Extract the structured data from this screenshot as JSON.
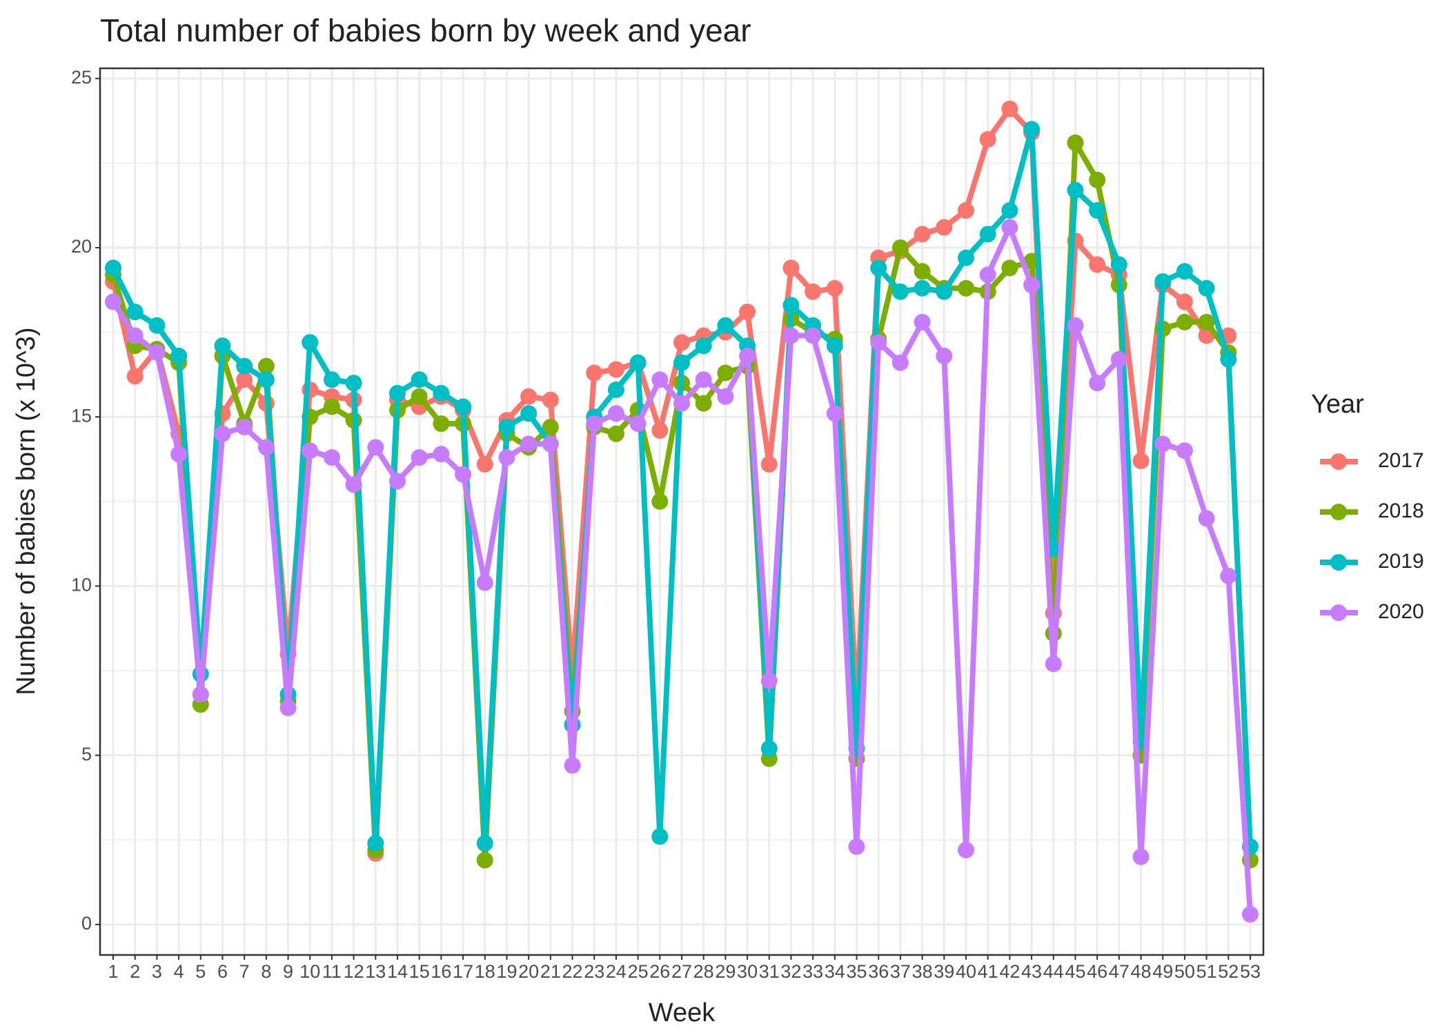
{
  "chart_data": {
    "type": "line",
    "title": "Total number of babies born by week and year",
    "x_label": "Week",
    "y_label": "Number of babies born (x 10^3)",
    "legend_title": "Year",
    "legend_position": "right",
    "grid": true,
    "categories": [
      "1",
      "2",
      "3",
      "4",
      "5",
      "6",
      "7",
      "8",
      "9",
      "10",
      "11",
      "12",
      "13",
      "14",
      "15",
      "16",
      "17",
      "18",
      "19",
      "20",
      "21",
      "22",
      "23",
      "24",
      "25",
      "26",
      "27",
      "28",
      "29",
      "30",
      "31",
      "32",
      "33",
      "34",
      "35",
      "36",
      "37",
      "38",
      "39",
      "40",
      "41",
      "42",
      "43",
      "44",
      "45",
      "46",
      "47",
      "48",
      "49",
      "50",
      "51",
      "52",
      "53"
    ],
    "ylim": [
      -0.9,
      25.3
    ],
    "yticks": [
      0,
      5,
      10,
      15,
      20,
      25
    ],
    "series": [
      {
        "name": "2017",
        "color": "#F8766D",
        "values": [
          19.0,
          16.2,
          17.0,
          14.5,
          6.8,
          15.1,
          16.1,
          15.4,
          8.0,
          15.8,
          15.6,
          15.5,
          2.1,
          15.5,
          15.3,
          15.6,
          15.2,
          13.6,
          14.9,
          15.6,
          15.5,
          7.4,
          16.3,
          16.4,
          16.6,
          14.6,
          17.2,
          17.4,
          17.5,
          18.1,
          13.6,
          19.4,
          18.7,
          18.8,
          6.4,
          19.7,
          19.9,
          20.4,
          20.6,
          21.1,
          23.2,
          24.1,
          23.4,
          9.2,
          20.2,
          19.5,
          19.2,
          13.7,
          18.9,
          18.4,
          17.4,
          17.4,
          null
        ]
      },
      {
        "name": "2018",
        "color": "#7CAE00",
        "values": [
          19.2,
          17.1,
          17.0,
          16.6,
          6.5,
          16.8,
          14.8,
          16.5,
          6.6,
          15.0,
          15.3,
          14.9,
          2.2,
          15.2,
          15.6,
          14.8,
          14.8,
          1.9,
          14.5,
          14.1,
          14.7,
          6.3,
          14.7,
          14.5,
          15.2,
          12.5,
          16.0,
          15.4,
          16.3,
          16.5,
          4.9,
          17.9,
          17.5,
          17.3,
          4.9,
          17.3,
          20.0,
          19.3,
          18.8,
          18.8,
          18.7,
          19.4,
          19.6,
          8.6,
          23.1,
          22.0,
          18.9,
          5.0,
          17.6,
          17.8,
          17.8,
          16.9,
          1.9
        ]
      },
      {
        "name": "2019",
        "color": "#00BFC4",
        "values": [
          19.4,
          18.1,
          17.7,
          16.8,
          7.4,
          17.1,
          16.5,
          16.1,
          6.8,
          17.2,
          16.1,
          16.0,
          2.4,
          15.7,
          16.1,
          15.7,
          15.3,
          2.4,
          14.7,
          15.1,
          14.2,
          5.9,
          15.0,
          15.8,
          16.6,
          2.6,
          16.6,
          17.1,
          17.7,
          17.1,
          5.2,
          18.3,
          17.7,
          17.1,
          5.2,
          19.4,
          18.7,
          18.8,
          18.7,
          19.7,
          20.4,
          21.1,
          23.5,
          11.1,
          21.7,
          21.1,
          19.5,
          5.4,
          19.0,
          19.3,
          18.8,
          16.7,
          2.3
        ]
      },
      {
        "name": "2020",
        "color": "#C77CFF",
        "values": [
          18.4,
          17.4,
          16.9,
          13.9,
          6.8,
          14.5,
          14.7,
          14.1,
          6.4,
          14.0,
          13.8,
          13.0,
          14.1,
          13.1,
          13.8,
          13.9,
          13.3,
          10.1,
          13.8,
          14.2,
          14.2,
          4.7,
          14.8,
          15.1,
          14.8,
          16.1,
          15.4,
          16.1,
          15.6,
          16.8,
          7.2,
          17.4,
          17.4,
          15.1,
          2.3,
          17.2,
          16.6,
          17.8,
          16.8,
          2.2,
          19.2,
          20.6,
          18.9,
          7.7,
          17.7,
          16.0,
          16.7,
          2.0,
          14.2,
          14.0,
          12.0,
          10.3,
          0.3
        ]
      }
    ]
  }
}
